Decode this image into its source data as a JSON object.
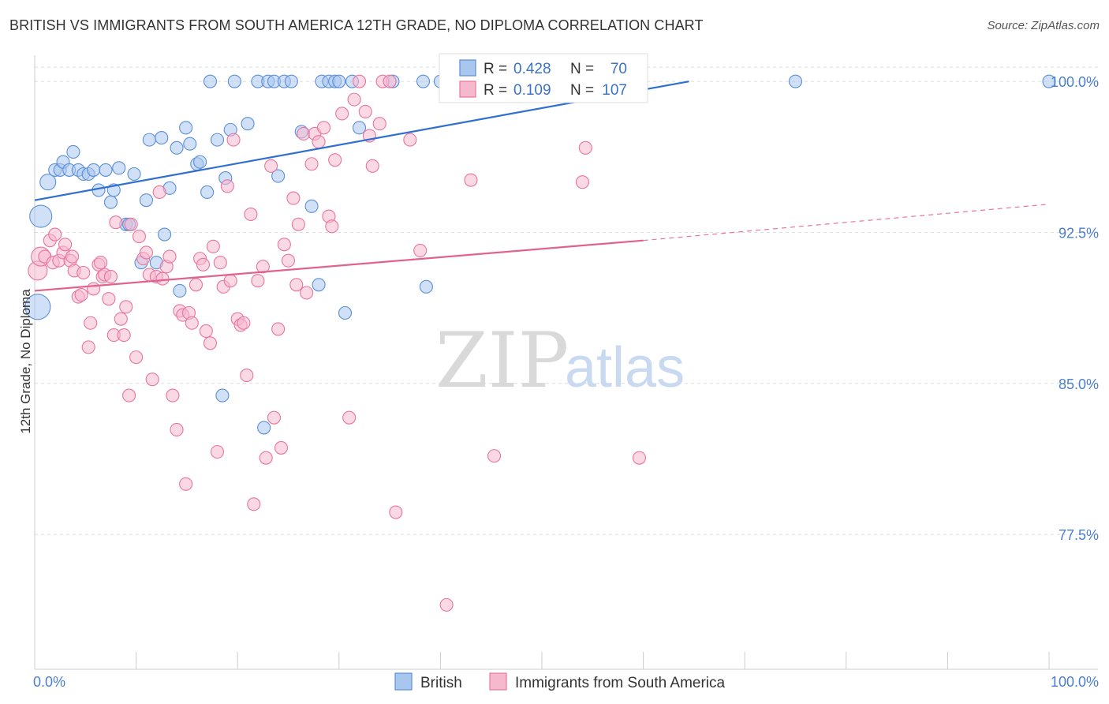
{
  "title": "BRITISH VS IMMIGRANTS FROM SOUTH AMERICA 12TH GRADE, NO DIPLOMA CORRELATION CHART",
  "source": "Source: ZipAtlas.com",
  "watermark": {
    "zip": "ZIP",
    "atlas": "atlas"
  },
  "colors": {
    "british": "#5b8fd9",
    "british_fill": "#a9c6ee",
    "immigrants": "#e8759d",
    "immigrants_fill": "#f6b8cd",
    "grid": "#dddddd",
    "tick": "#4a7fd0"
  },
  "stats": {
    "british": {
      "r_label": "R =",
      "r_value": "0.428",
      "n_label": "N =",
      "n_value": "70"
    },
    "immigrants": {
      "r_label": "R =",
      "r_value": "0.109",
      "n_label": "N =",
      "n_value": "107"
    }
  },
  "chart_data": {
    "type": "scatter",
    "title": "BRITISH VS IMMIGRANTS FROM SOUTH AMERICA 12TH GRADE, NO DIPLOMA CORRELATION CHART",
    "xlabel": "",
    "ylabel": "12th Grade, No Diploma",
    "xlim": [
      0,
      100
    ],
    "ylim": [
      70.8,
      101.3
    ],
    "x_tick_labels": [
      "0.0%",
      "100.0%"
    ],
    "y_ticks": [
      77.5,
      85.0,
      92.5,
      100.0
    ],
    "y_tick_labels": [
      "77.5%",
      "85.0%",
      "92.5%",
      "100.0%"
    ],
    "grid": true,
    "legend_position": "bottom-center",
    "series": [
      {
        "name": "British",
        "trend": {
          "x": [
            0,
            64.5
          ],
          "y": [
            94.1,
            100.0
          ]
        },
        "points": [
          [
            0.6,
            93.3,
            14
          ],
          [
            1.3,
            95.0,
            10
          ],
          [
            2.0,
            95.6,
            8
          ],
          [
            2.5,
            95.6,
            8
          ],
          [
            2.8,
            96.0,
            8
          ],
          [
            3.4,
            95.6,
            8
          ],
          [
            3.8,
            96.5,
            8
          ],
          [
            4.3,
            95.6,
            8
          ],
          [
            4.8,
            95.4,
            8
          ],
          [
            5.3,
            95.4,
            8
          ],
          [
            5.8,
            95.6,
            8
          ],
          [
            6.3,
            94.6,
            8
          ],
          [
            7.0,
            95.6,
            8
          ],
          [
            7.5,
            94.0,
            8
          ],
          [
            7.8,
            94.6,
            8
          ],
          [
            8.3,
            95.7,
            8
          ],
          [
            9.0,
            92.9,
            8
          ],
          [
            9.3,
            92.9,
            8
          ],
          [
            9.8,
            95.4,
            8
          ],
          [
            10.5,
            91.0,
            8
          ],
          [
            11.0,
            94.1,
            8
          ],
          [
            11.3,
            97.1,
            8
          ],
          [
            12.0,
            91.0,
            8
          ],
          [
            12.5,
            97.2,
            8
          ],
          [
            12.8,
            92.4,
            8
          ],
          [
            13.3,
            94.7,
            8
          ],
          [
            14.0,
            96.7,
            8
          ],
          [
            14.3,
            89.6,
            8
          ],
          [
            14.9,
            97.7,
            8
          ],
          [
            15.3,
            96.9,
            8
          ],
          [
            16.0,
            95.9,
            8
          ],
          [
            16.3,
            96.0,
            8
          ],
          [
            17.0,
            94.5,
            8
          ],
          [
            17.3,
            100.0,
            8
          ],
          [
            18.0,
            97.1,
            8
          ],
          [
            18.5,
            84.4,
            8
          ],
          [
            18.8,
            95.2,
            8
          ],
          [
            19.3,
            97.6,
            8
          ],
          [
            19.7,
            100.0,
            8
          ],
          [
            21.0,
            97.9,
            8
          ],
          [
            22.0,
            100.0,
            8
          ],
          [
            22.6,
            82.8,
            8
          ],
          [
            23.0,
            100.0,
            8
          ],
          [
            23.6,
            100.0,
            8
          ],
          [
            24.0,
            95.3,
            8
          ],
          [
            24.6,
            100.0,
            8
          ],
          [
            25.3,
            100.0,
            8
          ],
          [
            26.3,
            97.5,
            8
          ],
          [
            27.3,
            93.8,
            8
          ],
          [
            28.0,
            89.9,
            8
          ],
          [
            28.3,
            100.0,
            8
          ],
          [
            29.0,
            100.0,
            8
          ],
          [
            29.6,
            100.0,
            8
          ],
          [
            30.0,
            100.0,
            8
          ],
          [
            30.6,
            88.5,
            8
          ],
          [
            31.3,
            100.0,
            8
          ],
          [
            32.0,
            97.7,
            8
          ],
          [
            35.3,
            100.0,
            8
          ],
          [
            38.3,
            100.0,
            8
          ],
          [
            38.6,
            89.8,
            8
          ],
          [
            40.0,
            100.0,
            8
          ],
          [
            41.0,
            100.0,
            8
          ],
          [
            42.0,
            100.0,
            8
          ],
          [
            44.0,
            100.0,
            8
          ],
          [
            45.3,
            100.0,
            8
          ],
          [
            47.5,
            100.0,
            8
          ],
          [
            50.0,
            100.0,
            8
          ],
          [
            51.6,
            100.0,
            8
          ],
          [
            75.0,
            100.0,
            8
          ],
          [
            100.0,
            100.0,
            8
          ],
          [
            0.3,
            88.8,
            16
          ]
        ]
      },
      {
        "name": "Immigrants from South America",
        "trend": {
          "x": [
            0,
            60
          ],
          "y": [
            89.6,
            92.1
          ]
        },
        "trend_extension": {
          "x": [
            60,
            100
          ],
          "y": [
            92.1,
            93.9
          ]
        },
        "points": [
          [
            0.3,
            90.6,
            12
          ],
          [
            0.6,
            91.3,
            12
          ],
          [
            1.0,
            91.3,
            8
          ],
          [
            1.5,
            92.1,
            8
          ],
          [
            1.8,
            91.0,
            8
          ],
          [
            2.0,
            92.4,
            8
          ],
          [
            2.4,
            91.1,
            8
          ],
          [
            2.8,
            91.5,
            8
          ],
          [
            3.0,
            91.9,
            8
          ],
          [
            3.5,
            91.1,
            8
          ],
          [
            3.7,
            91.3,
            8
          ],
          [
            3.9,
            90.6,
            8
          ],
          [
            4.3,
            89.3,
            8
          ],
          [
            4.6,
            89.4,
            8
          ],
          [
            4.8,
            90.5,
            8
          ],
          [
            5.3,
            86.8,
            8
          ],
          [
            5.5,
            88.0,
            8
          ],
          [
            5.8,
            89.7,
            8
          ],
          [
            6.3,
            90.9,
            8
          ],
          [
            6.5,
            91.0,
            8
          ],
          [
            6.7,
            90.3,
            8
          ],
          [
            6.9,
            90.4,
            8
          ],
          [
            7.3,
            89.2,
            8
          ],
          [
            7.5,
            90.3,
            8
          ],
          [
            7.8,
            87.4,
            8
          ],
          [
            8.0,
            93.0,
            8
          ],
          [
            8.5,
            88.2,
            8
          ],
          [
            8.8,
            87.4,
            8
          ],
          [
            9.0,
            88.8,
            8
          ],
          [
            9.3,
            84.4,
            8
          ],
          [
            9.5,
            92.9,
            8
          ],
          [
            10.0,
            86.3,
            8
          ],
          [
            10.3,
            92.3,
            8
          ],
          [
            10.7,
            91.2,
            8
          ],
          [
            11.0,
            91.5,
            8
          ],
          [
            11.3,
            90.4,
            8
          ],
          [
            11.6,
            85.2,
            8
          ],
          [
            12.0,
            90.3,
            8
          ],
          [
            12.3,
            94.5,
            8
          ],
          [
            12.6,
            90.2,
            8
          ],
          [
            13.0,
            90.8,
            8
          ],
          [
            13.3,
            91.3,
            8
          ],
          [
            13.6,
            84.4,
            8
          ],
          [
            14.0,
            82.7,
            8
          ],
          [
            14.3,
            88.6,
            8
          ],
          [
            14.6,
            88.4,
            8
          ],
          [
            14.9,
            80.0,
            8
          ],
          [
            15.2,
            88.5,
            8
          ],
          [
            15.5,
            88.0,
            8
          ],
          [
            15.9,
            89.9,
            8
          ],
          [
            16.3,
            91.2,
            8
          ],
          [
            16.6,
            90.9,
            8
          ],
          [
            16.9,
            87.6,
            8
          ],
          [
            17.3,
            87.0,
            8
          ],
          [
            17.6,
            91.8,
            8
          ],
          [
            18.0,
            81.6,
            8
          ],
          [
            18.3,
            91.0,
            8
          ],
          [
            18.6,
            89.8,
            8
          ],
          [
            19.0,
            94.8,
            8
          ],
          [
            19.3,
            90.1,
            8
          ],
          [
            19.6,
            97.1,
            8
          ],
          [
            20.0,
            88.2,
            8
          ],
          [
            20.3,
            87.9,
            8
          ],
          [
            20.6,
            88.0,
            8
          ],
          [
            20.9,
            85.4,
            8
          ],
          [
            21.3,
            93.4,
            8
          ],
          [
            21.6,
            79.0,
            8
          ],
          [
            22.0,
            90.1,
            8
          ],
          [
            22.5,
            90.8,
            8
          ],
          [
            22.8,
            81.3,
            8
          ],
          [
            23.3,
            95.8,
            8
          ],
          [
            23.6,
            83.3,
            8
          ],
          [
            24.0,
            87.7,
            8
          ],
          [
            24.3,
            81.8,
            8
          ],
          [
            24.6,
            91.9,
            8
          ],
          [
            25.0,
            91.1,
            8
          ],
          [
            25.5,
            94.2,
            8
          ],
          [
            25.8,
            89.9,
            8
          ],
          [
            26.0,
            92.9,
            8
          ],
          [
            26.5,
            97.4,
            8
          ],
          [
            26.8,
            89.5,
            8
          ],
          [
            27.3,
            95.9,
            8
          ],
          [
            27.6,
            97.4,
            8
          ],
          [
            28.0,
            97.0,
            8
          ],
          [
            28.5,
            97.7,
            8
          ],
          [
            29.0,
            93.3,
            8
          ],
          [
            29.3,
            92.8,
            8
          ],
          [
            29.6,
            96.1,
            8
          ],
          [
            30.3,
            98.4,
            8
          ],
          [
            31.0,
            83.3,
            8
          ],
          [
            31.5,
            99.1,
            8
          ],
          [
            32.0,
            100.0,
            8
          ],
          [
            32.6,
            98.5,
            8
          ],
          [
            33.0,
            97.3,
            8
          ],
          [
            33.3,
            95.8,
            8
          ],
          [
            34.0,
            97.9,
            8
          ],
          [
            34.3,
            100.0,
            8
          ],
          [
            35.0,
            100.0,
            8
          ],
          [
            35.6,
            78.6,
            8
          ],
          [
            37.0,
            97.1,
            8
          ],
          [
            38.0,
            91.6,
            8
          ],
          [
            40.6,
            74.0,
            8
          ],
          [
            43.0,
            95.1,
            8
          ],
          [
            45.3,
            81.4,
            8
          ],
          [
            54.0,
            95.0,
            8
          ],
          [
            54.3,
            96.7,
            8
          ],
          [
            59.6,
            81.3,
            8
          ]
        ]
      }
    ]
  },
  "legend": {
    "items": [
      {
        "label": "British"
      },
      {
        "label": "Immigrants from South America"
      }
    ]
  }
}
